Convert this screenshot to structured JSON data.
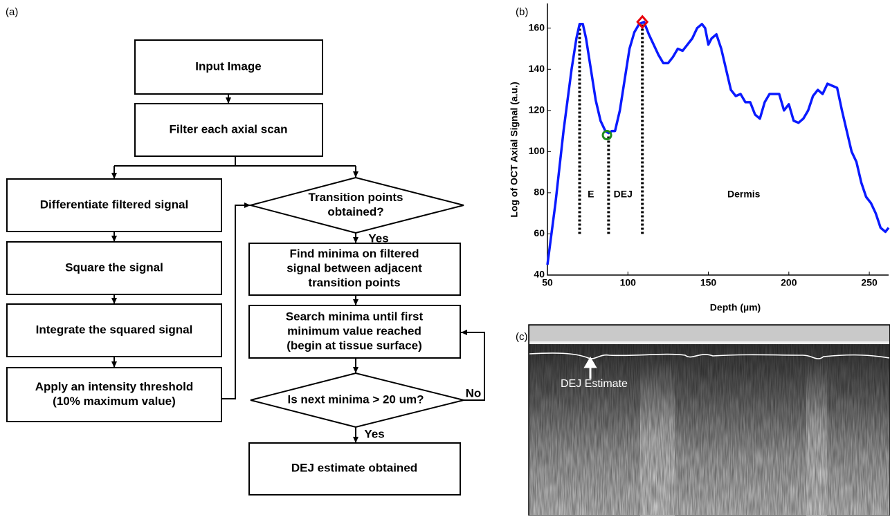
{
  "panel_labels": [
    "(a)",
    "(b)",
    "(c)"
  ],
  "flowchart": {
    "nodes": [
      {
        "lines": [
          "Input Image"
        ]
      },
      {
        "lines": [
          "Filter each axial scan"
        ]
      },
      {
        "lines": [
          "Differentiate filtered signal"
        ]
      },
      {
        "lines": [
          "Square the signal"
        ]
      },
      {
        "lines": [
          "Integrate the squared signal"
        ]
      },
      {
        "lines": [
          "Apply an intensity threshold",
          "(10% maximum value)"
        ]
      },
      {
        "lines": [
          "Transition points",
          "obtained?"
        ]
      },
      {
        "lines": [
          "Find minima on filtered",
          "signal between adjacent",
          "transition points"
        ]
      },
      {
        "lines": [
          "Search minima until first",
          "minimum value reached",
          "(begin at tissue surface)"
        ]
      },
      {
        "lines": [
          "Is next minima > 20 um?"
        ]
      },
      {
        "lines": [
          "DEJ estimate obtained"
        ]
      }
    ],
    "edge_labels": [
      "Yes",
      "No",
      "Yes"
    ]
  },
  "chart_data": {
    "type": "line",
    "xlabel": "Depth (µm)",
    "ylabel": "Log of OCT Axial Signal (a.u.)",
    "xlim": [
      50,
      262
    ],
    "ylim": [
      40,
      172
    ],
    "xticks": [
      50,
      100,
      150,
      200,
      250
    ],
    "yticks": [
      40,
      60,
      80,
      100,
      120,
      140,
      160
    ],
    "x": [
      50,
      55,
      60,
      65,
      68,
      70,
      72,
      74,
      77,
      80,
      83,
      86,
      88,
      90,
      92,
      95,
      98,
      101,
      104,
      107,
      110,
      113,
      116,
      119,
      122,
      125,
      128,
      131,
      134,
      137,
      140,
      143,
      146,
      148,
      150,
      152,
      155,
      158,
      161,
      164,
      167,
      170,
      173,
      176,
      179,
      182,
      185,
      188,
      191,
      194,
      197,
      200,
      203,
      206,
      209,
      212,
      215,
      218,
      221,
      224,
      227,
      230,
      233,
      236,
      239,
      242,
      245,
      248,
      251,
      254,
      257,
      260,
      262
    ],
    "series": [
      {
        "color": "#0a1aff",
        "values": [
          45,
          75,
          110,
          140,
          155,
          162,
          162,
          155,
          140,
          125,
          115,
          110,
          109,
          110,
          110,
          120,
          135,
          150,
          158,
          162,
          163,
          157,
          152,
          147,
          143,
          143,
          146,
          150,
          149,
          152,
          155,
          160,
          162,
          160,
          152,
          155,
          157,
          150,
          140,
          130,
          127,
          128,
          124,
          124,
          118,
          116,
          124,
          128,
          128,
          128,
          120,
          123,
          115,
          114,
          116,
          120,
          127,
          130,
          128,
          133,
          132,
          131,
          120,
          110,
          100,
          95,
          85,
          78,
          75,
          70,
          63,
          61,
          63
        ]
      }
    ],
    "points": [
      {
        "x": 87,
        "y": 108,
        "shape": "circle",
        "color": "#1e8c1e"
      },
      {
        "x": 109,
        "y": 163,
        "shape": "diamond",
        "color": "#e8000b"
      }
    ],
    "vlines": [
      {
        "x": 70,
        "y": [
          60,
          162
        ]
      },
      {
        "x": 88,
        "y": [
          60,
          108
        ]
      },
      {
        "x": 109,
        "y": [
          60,
          163
        ]
      }
    ],
    "annotations": [
      {
        "text": "E",
        "x": 77,
        "y": 79
      },
      {
        "text": "DEJ",
        "x": 97,
        "y": 79
      },
      {
        "text": "Dermis",
        "x": 172,
        "y": 79
      }
    ]
  },
  "image_panel": {
    "annotation": "DEJ Estimate"
  }
}
